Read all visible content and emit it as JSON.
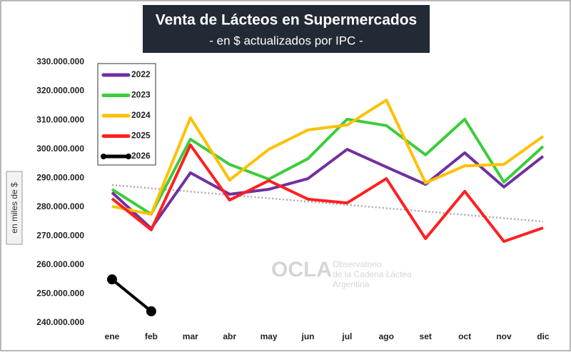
{
  "chart_data": {
    "type": "line",
    "title": "Venta de Lácteos en Supermercados",
    "subtitle": "- en $ actualizados por IPC -",
    "y_label": "en miles de $",
    "watermark": {
      "logo": "OCLA",
      "line1": "Observatorio",
      "line2": "de la Cadena Láctea",
      "line3": "Argentina"
    },
    "categories": [
      "ene",
      "feb",
      "mar",
      "abr",
      "may",
      "jun",
      "jul",
      "ago",
      "set",
      "oct",
      "nov",
      "dic"
    ],
    "ylim": [
      240000000,
      330000000
    ],
    "yticks": [
      {
        "value": 240000000,
        "label": "240.000.000"
      },
      {
        "value": 250000000,
        "label": "250.000.000"
      },
      {
        "value": 260000000,
        "label": "260.000.000"
      },
      {
        "value": 270000000,
        "label": "270.000.000"
      },
      {
        "value": 280000000,
        "label": "280.000.000"
      },
      {
        "value": 290000000,
        "label": "290.000.000"
      },
      {
        "value": 300000000,
        "label": "300.000.000"
      },
      {
        "value": 310000000,
        "label": "310.000.000"
      },
      {
        "value": 320000000,
        "label": "320.000.000"
      },
      {
        "value": 330000000,
        "label": "330.000.000"
      }
    ],
    "grid": false,
    "legend": "top-left",
    "series": [
      {
        "name": "2022",
        "color": "#7030a0",
        "values": [
          285000000,
          272600000,
          291800000,
          284400000,
          286100000,
          289800000,
          299900000,
          293800000,
          287800000,
          298700000,
          286900000,
          297500000
        ]
      },
      {
        "name": "2023",
        "color": "#3ccc3c",
        "values": [
          286100000,
          277500000,
          303400000,
          294700000,
          289600000,
          296700000,
          310300000,
          308100000,
          298000000,
          310300000,
          288600000,
          300900000
        ]
      },
      {
        "name": "2024",
        "color": "#ffc000",
        "values": [
          280200000,
          277500000,
          310800000,
          289300000,
          299900000,
          306600000,
          308300000,
          316900000,
          288300000,
          294200000,
          294700000,
          304400000
        ]
      },
      {
        "name": "2025",
        "color": "#ff2020",
        "values": [
          282900000,
          272100000,
          301400000,
          282400000,
          289100000,
          282700000,
          281400000,
          289800000,
          269100000,
          285400000,
          268100000,
          272800000
        ]
      },
      {
        "name": "2026",
        "color": "#000000",
        "values": [
          255000000,
          244000000,
          null,
          null,
          null,
          null,
          null,
          null,
          null,
          null,
          null,
          null
        ]
      }
    ],
    "trend": {
      "start": 287600000,
      "end": 275000000,
      "color": "#aaaaaa"
    }
  }
}
